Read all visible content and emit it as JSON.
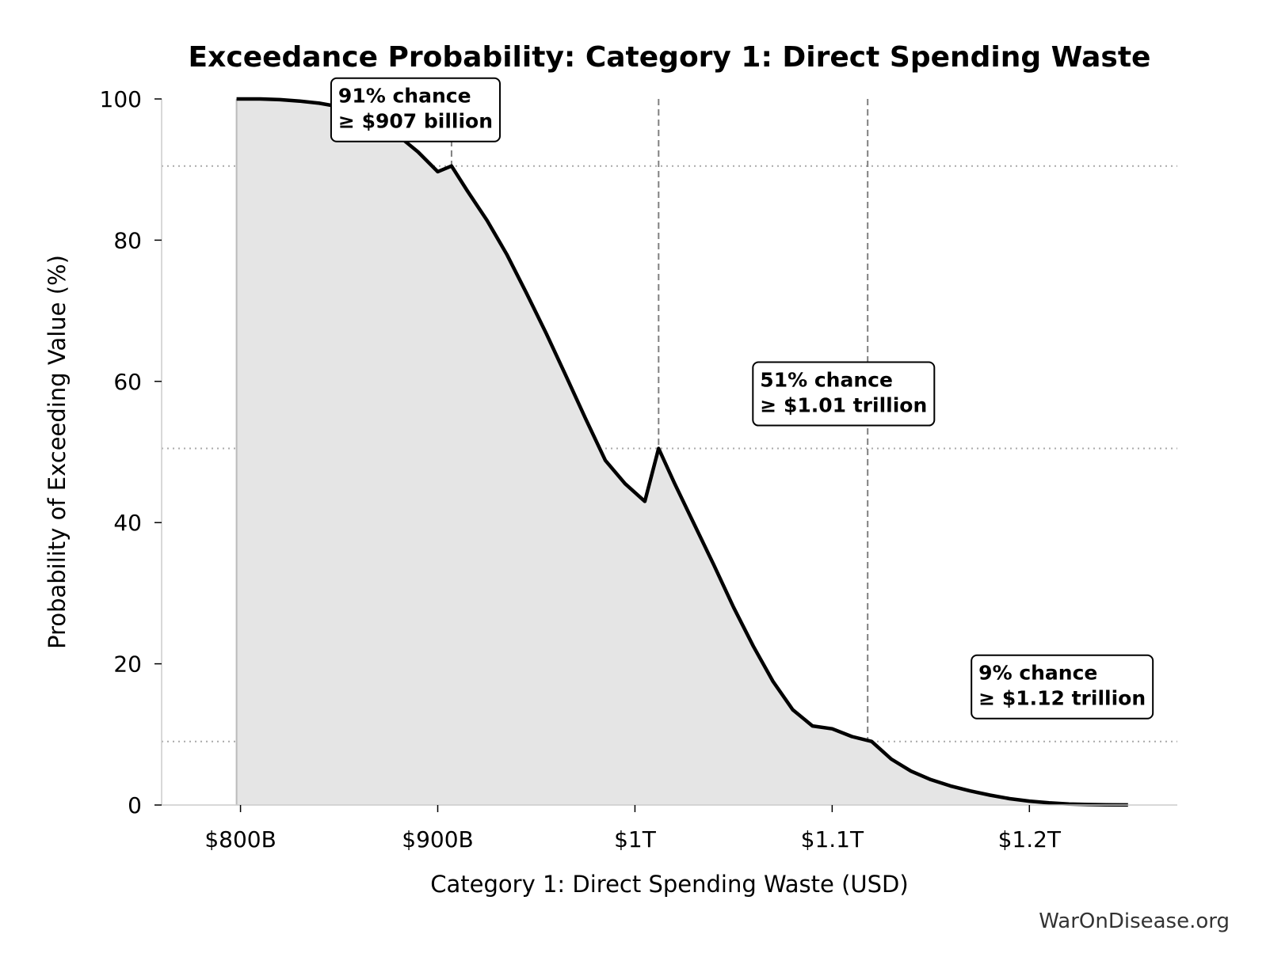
{
  "watermark": "WarOnDisease.org",
  "chart_data": {
    "type": "area",
    "title": "Exceedance Probability: Category 1: Direct Spending Waste",
    "xlabel": "Category 1: Direct Spending Waste (USD)",
    "ylabel": "Probability of Exceeding Value (%)",
    "xlim": [
      760,
      1275
    ],
    "ylim": [
      0,
      100
    ],
    "x_unit": "billion USD",
    "x_ticks": [
      {
        "value": 800,
        "label": "$800B"
      },
      {
        "value": 900,
        "label": "$900B"
      },
      {
        "value": 1000,
        "label": "$1T"
      },
      {
        "value": 1100,
        "label": "$1.1T"
      },
      {
        "value": 1200,
        "label": "$1.2T"
      }
    ],
    "y_ticks": [
      {
        "value": 0,
        "label": "0"
      },
      {
        "value": 20,
        "label": "20"
      },
      {
        "value": 40,
        "label": "40"
      },
      {
        "value": 60,
        "label": "60"
      },
      {
        "value": 80,
        "label": "80"
      },
      {
        "value": 100,
        "label": "100"
      }
    ],
    "series": [
      {
        "x": [
          798,
          810,
          820,
          830,
          840,
          850,
          860,
          870,
          880,
          890,
          900,
          907,
          915,
          925,
          935,
          945,
          955,
          965,
          975,
          985,
          995,
          1005,
          1012,
          1020,
          1030,
          1040,
          1050,
          1060,
          1070,
          1080,
          1090,
          1100,
          1110,
          1120,
          1130,
          1140,
          1150,
          1160,
          1170,
          1180,
          1190,
          1200,
          1210,
          1220,
          1230,
          1240,
          1250
        ],
        "y": [
          100,
          100,
          99.9,
          99.7,
          99.4,
          98.9,
          98,
          96.8,
          94.8,
          92.5,
          89.7,
          90.5,
          87,
          82.8,
          78,
          72.5,
          66.8,
          60.8,
          54.7,
          48.8,
          45.5,
          43,
          50.5,
          45.6,
          39.8,
          34,
          28,
          22.5,
          17.5,
          13.5,
          11.2,
          10.8,
          9.7,
          9,
          6.5,
          4.8,
          3.6,
          2.7,
          2,
          1.4,
          0.9,
          0.55,
          0.3,
          0.15,
          0.07,
          0.03,
          0.01
        ]
      }
    ],
    "grid": false,
    "reference_lines": {
      "vertical": [
        907,
        1012,
        1118
      ],
      "horizontal": [
        90.5,
        50.5,
        9
      ]
    },
    "annotations": [
      {
        "line1": "91% chance",
        "line2": "≥ $907 billion"
      },
      {
        "line1": "51% chance",
        "line2": "≥ $1.01 trillion"
      },
      {
        "line1": "9% chance",
        "line2": "≥ $1.12 trillion"
      }
    ],
    "colors": {
      "line": "#000000",
      "fill": "#e5e5e5",
      "reference": "#808080",
      "axis": "#cccccc"
    }
  }
}
